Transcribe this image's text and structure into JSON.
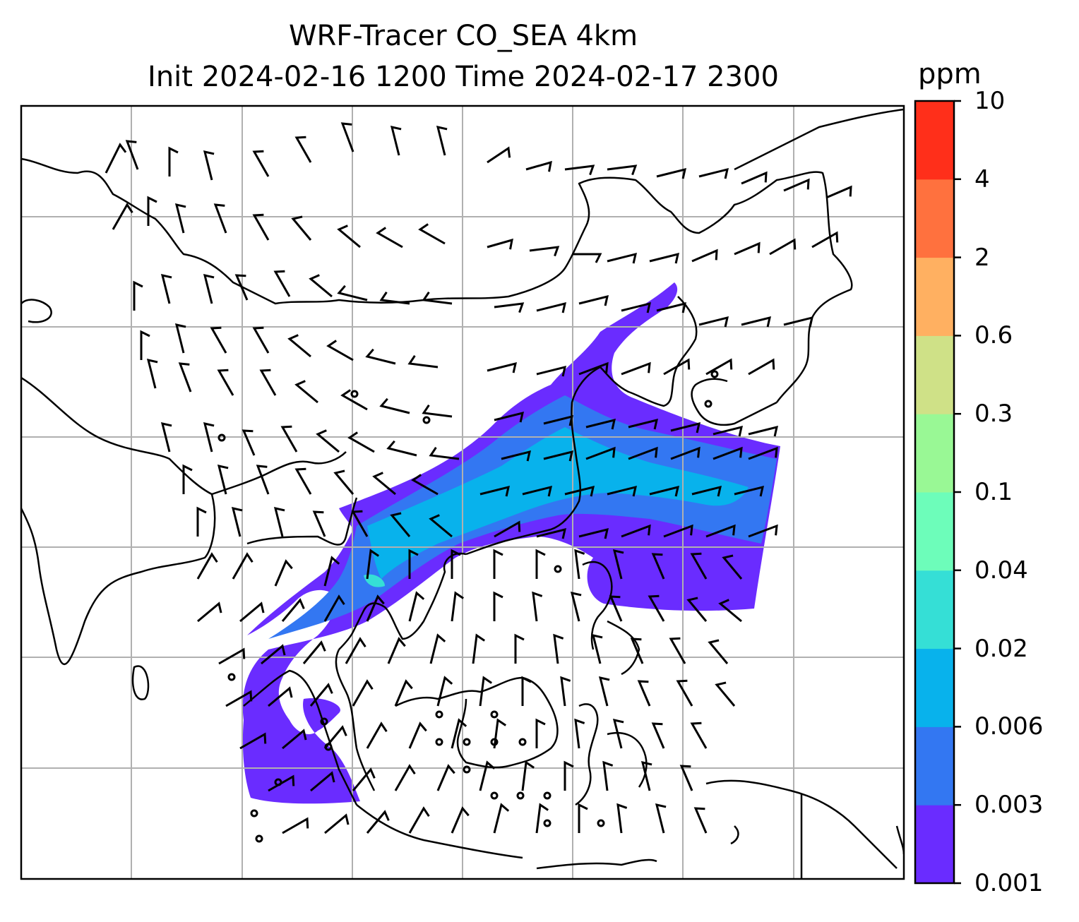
{
  "title_line1": "WRF-Tracer CO_SEA 4km",
  "title_line2": "Init 2024-02-16 1200 Time 2024-02-17 2300",
  "colorbar": {
    "unit": "ppm",
    "levels": [
      "0.001",
      "0.003",
      "0.006",
      "0.02",
      "0.04",
      "0.1",
      "0.3",
      "0.6",
      "2",
      "4",
      "10"
    ],
    "colors": [
      "#6a2cff",
      "#3377f2",
      "#08b2ec",
      "#35dfd6",
      "#6dfdba",
      "#99f895",
      "#cfe187",
      "#ffb061",
      "#ff713e",
      "#ff2f1a"
    ]
  },
  "map": {
    "gridlines": true,
    "grid_color": "#b0b0b0",
    "land_outline_color": "#000000"
  }
}
